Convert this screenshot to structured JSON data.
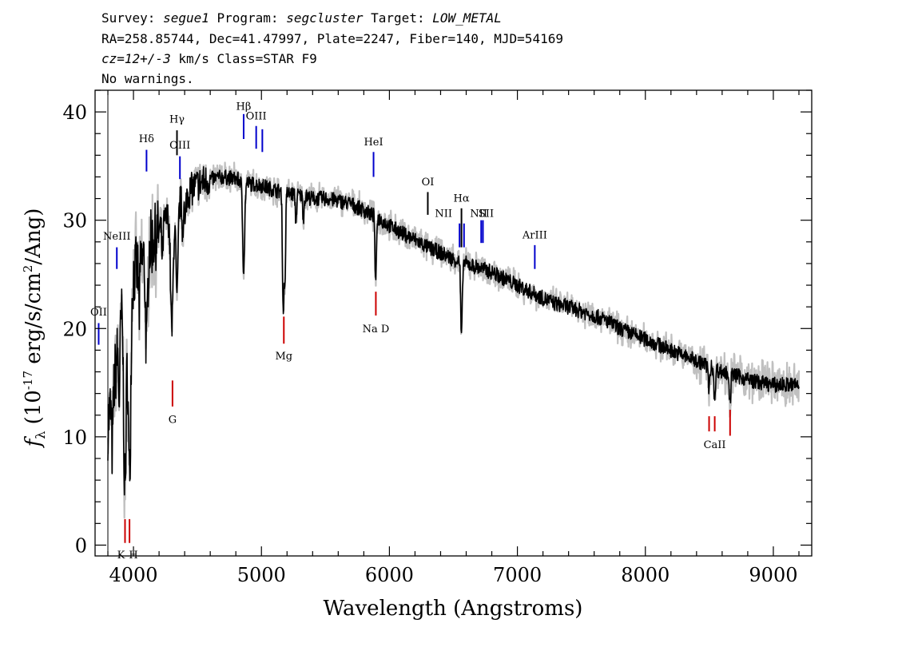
{
  "header": {
    "line1": [
      {
        "text": "Survey: ",
        "italic": false
      },
      {
        "text": "segue1",
        "italic": true
      },
      {
        "text": " Program: ",
        "italic": false
      },
      {
        "text": "segcluster",
        "italic": true
      },
      {
        "text": " Target: ",
        "italic": false
      },
      {
        "text": "LOW_METAL",
        "italic": true
      }
    ],
    "line2": "RA=258.85744, Dec=41.47997, Plate=2247, Fiber=140, MJD=54169",
    "line3": [
      {
        "text": "cz=12+/-3",
        "italic": true
      },
      {
        "text": " km/s Class=STAR F9",
        "italic": false
      }
    ],
    "line4": "No warnings."
  },
  "chart_data": {
    "type": "line",
    "xlabel": "Wavelength (Angstroms)",
    "ylabel": "f_λ (10^-17 erg/s/cm^2/Ang)",
    "ylabel_parts": {
      "f": "f",
      "sub": "λ",
      "pre": " (10",
      "sup": "-17",
      "mid": " erg/s/cm",
      "sup2": "2",
      "post": "/Ang)"
    },
    "xlim": [
      3700,
      9300
    ],
    "ylim": [
      -1,
      42
    ],
    "xticks": [
      4000,
      5000,
      6000,
      7000,
      8000,
      9000
    ],
    "yticks": [
      0,
      10,
      20,
      30,
      40
    ],
    "grid": false,
    "spectrum_color": "#000000",
    "error_band_color": "#c0c0c0",
    "continuum_nodes": [
      [
        3800,
        11
      ],
      [
        3860,
        16
      ],
      [
        3900,
        21
      ],
      [
        3950,
        24
      ],
      [
        4000,
        25
      ],
      [
        4060,
        26
      ],
      [
        4120,
        27.5
      ],
      [
        4200,
        29
      ],
      [
        4280,
        30.5
      ],
      [
        4350,
        31.5
      ],
      [
        4420,
        32.5
      ],
      [
        4500,
        33.3
      ],
      [
        4600,
        33.8
      ],
      [
        4700,
        34
      ],
      [
        4800,
        33.8
      ],
      [
        4900,
        33.4
      ],
      [
        5000,
        33.2
      ],
      [
        5100,
        32.8
      ],
      [
        5200,
        32.5
      ],
      [
        5300,
        32.3
      ],
      [
        5400,
        32
      ],
      [
        5500,
        32
      ],
      [
        5600,
        31.8
      ],
      [
        5700,
        31.5
      ],
      [
        5800,
        30.9
      ],
      [
        5900,
        30.3
      ],
      [
        6000,
        29.5
      ],
      [
        6100,
        28.8
      ],
      [
        6200,
        28.2
      ],
      [
        6300,
        27.5
      ],
      [
        6400,
        27
      ],
      [
        6500,
        26.4
      ],
      [
        6600,
        26
      ],
      [
        6700,
        25.6
      ],
      [
        6800,
        25.2
      ],
      [
        6900,
        24.6
      ],
      [
        7000,
        24
      ],
      [
        7100,
        23.4
      ],
      [
        7200,
        22.8
      ],
      [
        7300,
        22.3
      ],
      [
        7400,
        22
      ],
      [
        7500,
        21.6
      ],
      [
        7600,
        21.2
      ],
      [
        7700,
        20.7
      ],
      [
        7800,
        20
      ],
      [
        7900,
        19.5
      ],
      [
        8000,
        19
      ],
      [
        8100,
        18.5
      ],
      [
        8200,
        18
      ],
      [
        8300,
        17.5
      ],
      [
        8400,
        17
      ],
      [
        8500,
        16.5
      ],
      [
        8600,
        16
      ],
      [
        8700,
        15.7
      ],
      [
        8800,
        15.3
      ],
      [
        8900,
        15
      ],
      [
        9000,
        14.8
      ],
      [
        9100,
        14.8
      ],
      [
        9200,
        14.8
      ]
    ],
    "absorption_features": [
      {
        "center": 3934,
        "depth": 18,
        "width": 10
      },
      {
        "center": 3969,
        "depth": 18,
        "width": 10
      },
      {
        "center": 3889,
        "depth": 6,
        "width": 6
      },
      {
        "center": 3835,
        "depth": 5,
        "width": 6
      },
      {
        "center": 4102,
        "depth": 9,
        "width": 8
      },
      {
        "center": 4045,
        "depth": 4,
        "width": 5
      },
      {
        "center": 4226,
        "depth": 3,
        "width": 5
      },
      {
        "center": 4300,
        "depth": 11,
        "width": 10
      },
      {
        "center": 4340,
        "depth": 9,
        "width": 8
      },
      {
        "center": 4384,
        "depth": 3,
        "width": 5
      },
      {
        "center": 4404,
        "depth": 3,
        "width": 5
      },
      {
        "center": 4861,
        "depth": 8,
        "width": 8
      },
      {
        "center": 5167,
        "depth": 6,
        "width": 5
      },
      {
        "center": 5173,
        "depth": 7,
        "width": 5
      },
      {
        "center": 5184,
        "depth": 8,
        "width": 5
      },
      {
        "center": 5270,
        "depth": 2.5,
        "width": 5
      },
      {
        "center": 5328,
        "depth": 2,
        "width": 5
      },
      {
        "center": 5890,
        "depth": 4.5,
        "width": 4
      },
      {
        "center": 5896,
        "depth": 4,
        "width": 4
      },
      {
        "center": 6563,
        "depth": 7,
        "width": 6
      },
      {
        "center": 8498,
        "depth": 2.5,
        "width": 5
      },
      {
        "center": 8542,
        "depth": 3.5,
        "width": 5
      },
      {
        "center": 8662,
        "depth": 3,
        "width": 5
      }
    ],
    "line_markers": [
      {
        "label": "OII",
        "wave": 3728,
        "color": "#0000cc",
        "y0": 18.5,
        "y1": 20.5,
        "label_y": 21.5,
        "label_side": "above"
      },
      {
        "label": "NeIII",
        "wave": 3870,
        "color": "#0000cc",
        "y0": 25.5,
        "y1": 27.5,
        "label_y": 28.5,
        "label_side": "above"
      },
      {
        "label": "Hδ",
        "wave": 4102,
        "color": "#0000cc",
        "y0": 34.5,
        "y1": 36.5,
        "label_y": 37.5,
        "label_side": "above"
      },
      {
        "label": "Hγ",
        "wave": 4340,
        "color": "#000000",
        "y0": 36,
        "y1": 38.3,
        "label_y": 39.3,
        "label_side": "above"
      },
      {
        "label": "OIII",
        "wave": 4363,
        "color": "#0000cc",
        "y0": 33.8,
        "y1": 35.9,
        "label_y": 36.9,
        "label_side": "above"
      },
      {
        "label": "Hβ",
        "wave": 4861,
        "color": "#0000cc",
        "y0": 37.5,
        "y1": 39.8,
        "label_y": 40.5,
        "label_side": "above"
      },
      {
        "label": "OIII",
        "wave": 4959,
        "color": "#0000cc",
        "y0": 36.6,
        "y1": 38.7,
        "label_y": 39.6,
        "label_side": "above"
      },
      {
        "label": "",
        "wave": 5007,
        "color": "#0000cc",
        "y0": 36.3,
        "y1": 38.4,
        "label_y": 0,
        "label_side": "none"
      },
      {
        "label": "HeI",
        "wave": 5876,
        "color": "#0000cc",
        "y0": 34,
        "y1": 36.3,
        "label_y": 37.2,
        "label_side": "above"
      },
      {
        "label": "OI",
        "wave": 6300,
        "color": "#000000",
        "y0": 30.5,
        "y1": 32.6,
        "label_y": 33.5,
        "label_side": "above"
      },
      {
        "label": "NII",
        "wave": 6548,
        "color": "#0000cc",
        "y0": 27.5,
        "y1": 29.7,
        "label_y": 30.6,
        "label_side": "above"
      },
      {
        "label": "Hα",
        "wave": 6563,
        "color": "#000000",
        "y0": 27.5,
        "y1": 31.1,
        "label_y": 32,
        "label_side": "above"
      },
      {
        "label": "",
        "wave": 6583,
        "color": "#0000cc",
        "y0": 27.5,
        "y1": 29.7,
        "label_y": 0,
        "label_side": "none"
      },
      {
        "label": "NII",
        "wave": 6717,
        "color": "#0000cc",
        "y0": 27.9,
        "y1": 30.0,
        "label_y": 30.6,
        "label_side": "above"
      },
      {
        "label": "SII",
        "wave": 6731,
        "color": "#0000cc",
        "y0": 27.9,
        "y1": 30.0,
        "label_y": 30.6,
        "label_side": "above"
      },
      {
        "label": "ArIII",
        "wave": 7136,
        "color": "#0000cc",
        "y0": 25.5,
        "y1": 27.7,
        "label_y": 28.6,
        "label_side": "above"
      },
      {
        "label": "K",
        "wave": 3934,
        "color": "#cc0000",
        "y0": 0.2,
        "y1": 2.4,
        "label_y": -0.5,
        "label_side": "below"
      },
      {
        "label": "H",
        "wave": 3969,
        "color": "#cc0000",
        "y0": 0.2,
        "y1": 2.4,
        "label_y": -0.5,
        "label_side": "below"
      },
      {
        "label": "G",
        "wave": 4305,
        "color": "#cc0000",
        "y0": 12.8,
        "y1": 15.2,
        "label_y": 12.0,
        "label_side": "below"
      },
      {
        "label": "Mg",
        "wave": 5175,
        "color": "#cc0000",
        "y0": 18.6,
        "y1": 21.1,
        "label_y": 17.9,
        "label_side": "below"
      },
      {
        "label": "Na D",
        "wave": 5894,
        "color": "#cc0000",
        "y0": 21.2,
        "y1": 23.4,
        "label_y": 20.4,
        "label_side": "below"
      },
      {
        "label": "",
        "wave": 8498,
        "color": "#cc0000",
        "y0": 10.5,
        "y1": 11.9,
        "label_y": 0,
        "label_side": "none"
      },
      {
        "label": "CaII",
        "wave": 8542,
        "color": "#cc0000",
        "y0": 10.5,
        "y1": 11.9,
        "label_y": 9.7,
        "label_side": "below"
      },
      {
        "label": "",
        "wave": 8662,
        "color": "#cc0000",
        "y0": 10.1,
        "y1": 12.5,
        "label_y": 0,
        "label_side": "none"
      }
    ]
  }
}
